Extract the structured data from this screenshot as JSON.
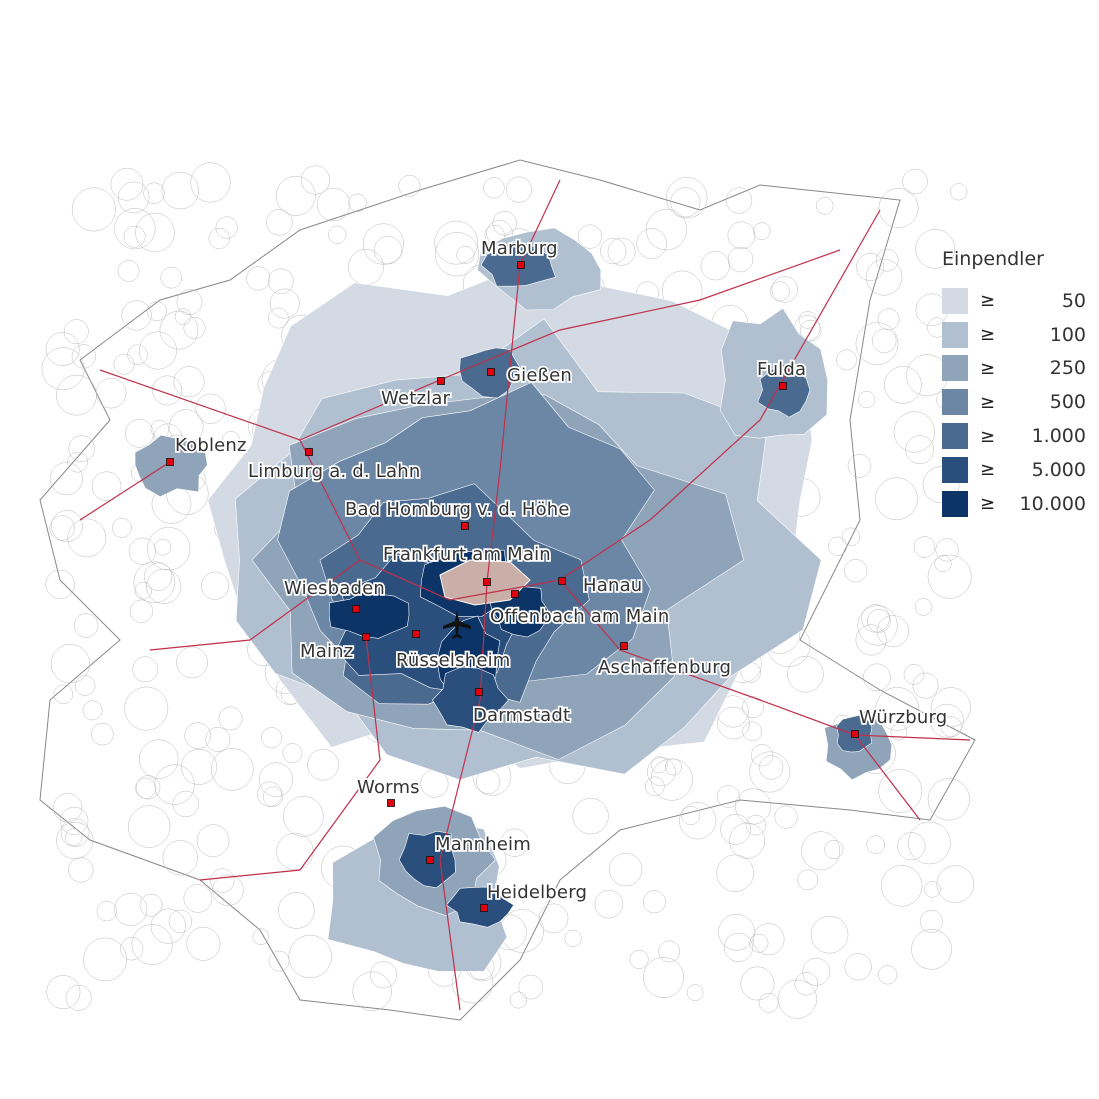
{
  "legend": {
    "title": "Einpendler",
    "symbol": "≥",
    "classes": [
      {
        "label": "50",
        "color": "#d3dae3"
      },
      {
        "label": "100",
        "color": "#b1c0d1"
      },
      {
        "label": "250",
        "color": "#8fa3b9"
      },
      {
        "label": "500",
        "color": "#6c87a5"
      },
      {
        "label": "1.000",
        "color": "#4b6a90"
      },
      {
        "label": "5.000",
        "color": "#2a4f7d"
      },
      {
        "label": "10.000",
        "color": "#0c3466"
      }
    ]
  },
  "target_area_color": "#c9afa8",
  "rail_color": "#c0304a",
  "marker_color": "#e0000f",
  "cities": [
    {
      "name": "Marburg"
    },
    {
      "name": "Gießen"
    },
    {
      "name": "Wetzlar"
    },
    {
      "name": "Fulda"
    },
    {
      "name": "Koblenz"
    },
    {
      "name": "Limburg a. d. Lahn"
    },
    {
      "name": "Bad Homburg v. d. Höhe"
    },
    {
      "name": "Frankfurt am Main"
    },
    {
      "name": "Hanau"
    },
    {
      "name": "Wiesbaden"
    },
    {
      "name": "Offenbach am Main"
    },
    {
      "name": "Mainz"
    },
    {
      "name": "Rüsselsheim"
    },
    {
      "name": "Aschaffenburg"
    },
    {
      "name": "Darmstadt"
    },
    {
      "name": "Würzburg"
    },
    {
      "name": "Worms"
    },
    {
      "name": "Mannheim"
    },
    {
      "name": "Heidelberg"
    }
  ],
  "airport_icon": "airplane-icon"
}
